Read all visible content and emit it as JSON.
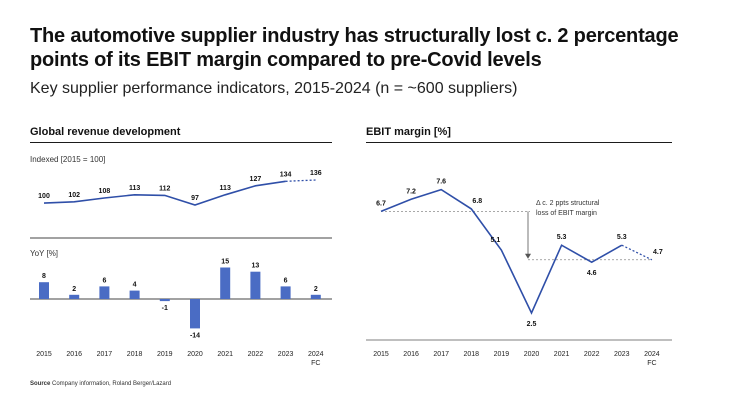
{
  "title": "The automotive supplier industry has structurally lost c. 2 percentage points of its EBIT margin compared to pre-Covid levels",
  "subtitle": "Key supplier performance indicators, 2015-2024 (n = ~600 suppliers)",
  "source": {
    "label": "Source",
    "text": "Company information, Roland Berger/Lazard"
  },
  "colors": {
    "series": "#2f4fa8",
    "bar": "#4a6cc4",
    "reference": "#8c8c8c",
    "text": "#111111"
  },
  "chart_data": [
    {
      "id": "revenue",
      "type": "line",
      "title": "Global revenue development",
      "unit_label": "Indexed [2015 = 100]",
      "categories": [
        "2015",
        "2016",
        "2017",
        "2018",
        "2019",
        "2020",
        "2021",
        "2022",
        "2023",
        "2024"
      ],
      "values": [
        100,
        102,
        108,
        113,
        112,
        97,
        113,
        127,
        134,
        136
      ],
      "labels": [
        "100",
        "102",
        "108",
        "113",
        "112",
        "97",
        "113",
        "127",
        "134",
        "136"
      ],
      "forecast_from_index": 8
    },
    {
      "id": "yoy",
      "type": "bar",
      "unit_label": "YoY [%]",
      "categories": [
        "2015",
        "2016",
        "2017",
        "2018",
        "2019",
        "2020",
        "2021",
        "2022",
        "2023",
        "2024"
      ],
      "x_tick_labels": [
        "2015",
        "2016",
        "2017",
        "2018",
        "2019",
        "2020",
        "2021",
        "2022",
        "2023",
        "2024"
      ],
      "forecast_suffix": "FC",
      "values": [
        8,
        2,
        6,
        4,
        -1,
        -14,
        15,
        13,
        6,
        2
      ],
      "labels": [
        "8",
        "2",
        "6",
        "4",
        "-1",
        "-14",
        "15",
        "13",
        "6",
        "2"
      ]
    },
    {
      "id": "ebit",
      "type": "line",
      "title": "EBIT margin [%]",
      "categories": [
        "2015",
        "2016",
        "2017",
        "2018",
        "2019",
        "2020",
        "2021",
        "2022",
        "2023",
        "2024"
      ],
      "x_tick_labels": [
        "2015",
        "2016",
        "2017",
        "2018",
        "2019",
        "2020",
        "2021",
        "2022",
        "2023",
        "2024"
      ],
      "forecast_suffix": "FC",
      "values": [
        6.7,
        7.2,
        7.6,
        6.8,
        5.1,
        2.5,
        5.3,
        4.6,
        5.3,
        4.7
      ],
      "labels": [
        "6.7",
        "7.2",
        "7.6",
        "6.8",
        "5.1",
        "2.5",
        "5.3",
        "4.6",
        "5.3",
        "4.7"
      ],
      "forecast_from_index": 8,
      "annotation": [
        "Δ c. 2 ppts structural",
        "loss of EBIT margin"
      ],
      "reference_levels": [
        6.7,
        4.7
      ]
    }
  ]
}
